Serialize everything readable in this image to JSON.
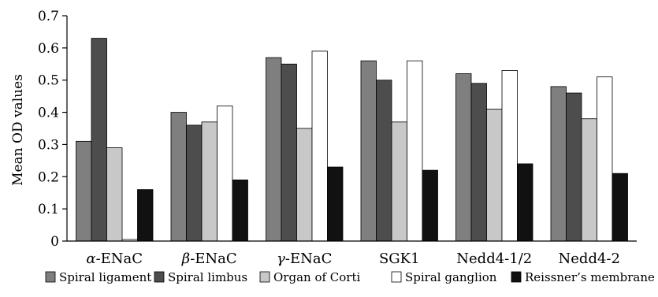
{
  "chart_data": {
    "type": "bar",
    "title": "",
    "xlabel": "",
    "ylabel": "Mean OD values",
    "ylim": [
      0,
      0.7
    ],
    "yticks": [
      "0",
      "0.1",
      "0.2",
      "0.3",
      "0.4",
      "0.5",
      "0.6",
      "0.7"
    ],
    "yticks_values": [
      0,
      0.1,
      0.2,
      0.3,
      0.4,
      0.5,
      0.6,
      0.7
    ],
    "categories": [
      {
        "greek": "α",
        "rest": "-ENaC"
      },
      {
        "greek": "β",
        "rest": "-ENaC"
      },
      {
        "greek": "γ",
        "rest": "-ENaC"
      },
      {
        "greek": "",
        "rest": "SGK1"
      },
      {
        "greek": "",
        "rest": "Nedd4-1/2"
      },
      {
        "greek": "",
        "rest": "Nedd4-2"
      }
    ],
    "grid": false,
    "legend_position": "bottom",
    "series": [
      {
        "name": "Spiral ligament",
        "color": "#7f7f7f",
        "values": [
          0.31,
          0.4,
          0.57,
          0.56,
          0.52,
          0.48
        ]
      },
      {
        "name": "Spiral limbus",
        "color": "#4d4d4d",
        "values": [
          0.63,
          0.36,
          0.55,
          0.5,
          0.49,
          0.46
        ]
      },
      {
        "name": "Organ of Corti",
        "color": "#c8c8c8",
        "values": [
          0.29,
          0.37,
          0.35,
          0.37,
          0.41,
          0.38
        ]
      },
      {
        "name": "Spiral ganglion",
        "color": "#ffffff",
        "values": [
          0.005,
          0.42,
          0.59,
          0.56,
          0.53,
          0.51
        ]
      },
      {
        "name": "Reissner’s membrane",
        "color": "#111111",
        "values": [
          0.16,
          0.19,
          0.23,
          0.22,
          0.24,
          0.21
        ]
      }
    ]
  }
}
